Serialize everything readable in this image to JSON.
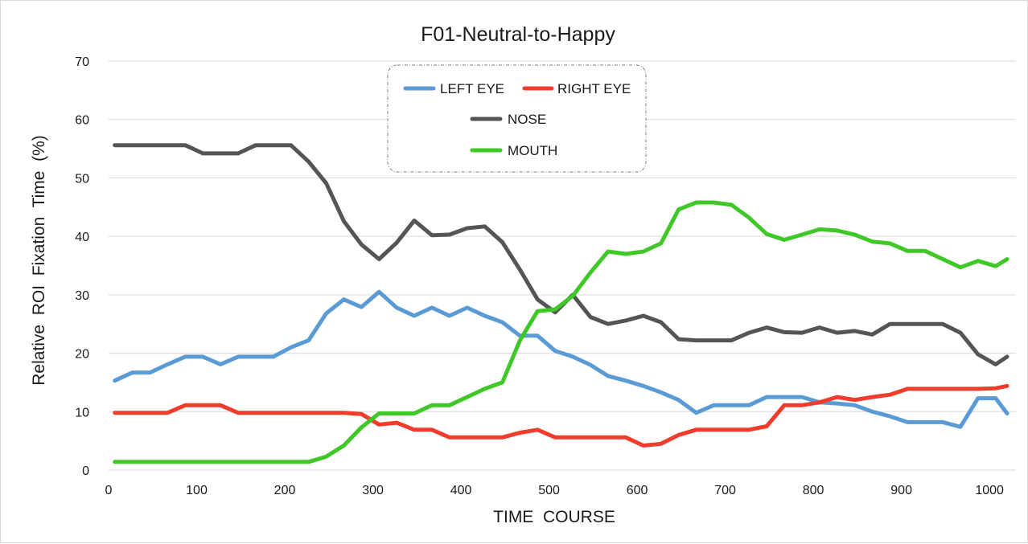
{
  "chart_data": {
    "type": "line",
    "title": "F01-Neutral-to-Happy",
    "xlabel": "TIME  COURSE",
    "ylabel": "Relative  ROI  Fixation  Time  (%)",
    "xlim": [
      0,
      1030
    ],
    "ylim": [
      0,
      70
    ],
    "xticks": [
      0,
      100,
      200,
      300,
      400,
      500,
      600,
      700,
      800,
      900,
      1000
    ],
    "yticks": [
      0,
      10,
      20,
      30,
      40,
      50,
      60,
      70
    ],
    "grid": "horizontal",
    "legend_position": "top-center",
    "x": [
      7,
      27,
      47,
      67,
      87,
      107,
      127,
      147,
      167,
      187,
      207,
      227,
      247,
      267,
      287,
      307,
      327,
      347,
      367,
      387,
      407,
      427,
      447,
      467,
      487,
      507,
      527,
      547,
      567,
      587,
      607,
      627,
      647,
      667,
      687,
      707,
      727,
      747,
      767,
      787,
      807,
      827,
      847,
      867,
      887,
      907,
      927,
      947,
      967,
      987,
      1007,
      1020
    ],
    "series": [
      {
        "name": "LEFT EYE",
        "color": "#5b9bd5",
        "values": [
          15.3,
          16.7,
          16.7,
          18.1,
          19.4,
          19.4,
          18.1,
          19.4,
          19.4,
          19.4,
          21.0,
          22.2,
          26.8,
          29.2,
          27.9,
          30.5,
          27.8,
          26.4,
          27.8,
          26.4,
          27.8,
          26.4,
          25.3,
          23.0,
          23.0,
          20.4,
          19.4,
          18.0,
          16.1,
          15.3,
          14.4,
          13.3,
          12.0,
          9.8,
          11.1,
          11.1,
          11.1,
          12.5,
          12.5,
          12.5,
          11.6,
          11.4,
          11.1,
          10.0,
          9.2,
          8.2,
          8.2,
          8.2,
          7.4,
          12.3,
          12.3,
          9.7
        ]
      },
      {
        "name": "RIGHT EYE",
        "color": "#f03c2d",
        "values": [
          9.8,
          9.8,
          9.8,
          9.8,
          11.1,
          11.1,
          11.1,
          9.8,
          9.8,
          9.8,
          9.8,
          9.8,
          9.8,
          9.8,
          9.6,
          7.8,
          8.1,
          6.9,
          6.9,
          5.6,
          5.6,
          5.6,
          5.6,
          6.4,
          6.9,
          5.6,
          5.6,
          5.6,
          5.6,
          5.6,
          4.2,
          4.5,
          6.0,
          6.9,
          6.9,
          6.9,
          6.9,
          7.5,
          11.1,
          11.1,
          11.6,
          12.5,
          12.0,
          12.5,
          12.9,
          13.9,
          13.9,
          13.9,
          13.9,
          13.9,
          14.0,
          14.4
        ]
      },
      {
        "name": "NOSE",
        "color": "#555555",
        "values": [
          55.6,
          55.6,
          55.6,
          55.6,
          55.6,
          54.2,
          54.2,
          54.2,
          55.6,
          55.6,
          55.6,
          52.8,
          49.1,
          42.6,
          38.6,
          36.1,
          38.9,
          42.7,
          40.2,
          40.3,
          41.4,
          41.7,
          39.0,
          34.3,
          29.2,
          27.0,
          30.0,
          26.2,
          25.0,
          25.6,
          26.4,
          25.3,
          22.4,
          22.2,
          22.2,
          22.2,
          23.5,
          24.4,
          23.6,
          23.5,
          24.4,
          23.5,
          23.8,
          23.2,
          25.0,
          25.0,
          25.0,
          25.0,
          23.5,
          19.8,
          18.1,
          19.4
        ]
      },
      {
        "name": "MOUTH",
        "color": "#40c828",
        "values": [
          1.4,
          1.4,
          1.4,
          1.4,
          1.4,
          1.4,
          1.4,
          1.4,
          1.4,
          1.4,
          1.4,
          1.4,
          2.3,
          4.2,
          7.3,
          9.7,
          9.7,
          9.7,
          11.1,
          11.1,
          12.5,
          13.9,
          15.0,
          22.2,
          27.2,
          27.5,
          29.8,
          33.8,
          37.4,
          37.0,
          37.4,
          38.8,
          44.6,
          45.8,
          45.8,
          45.4,
          43.2,
          40.4,
          39.4,
          40.3,
          41.2,
          41.0,
          40.3,
          39.1,
          38.8,
          37.5,
          37.5,
          36.1,
          34.7,
          35.8,
          34.9,
          36.1
        ]
      }
    ]
  }
}
